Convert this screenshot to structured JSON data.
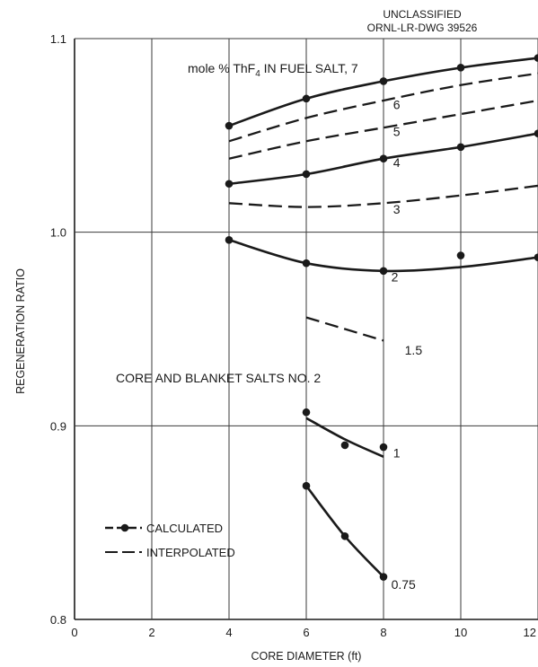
{
  "header": {
    "line1": "UNCLASSIFIED",
    "line2": "ORNL-LR-DWG 39526"
  },
  "colors": {
    "ink": "#1a1a1a",
    "grid": "#3a3a3a",
    "background": "#ffffff"
  },
  "chart_data": {
    "type": "line",
    "title": "",
    "xlabel": "CORE DIAMETER (ft)",
    "ylabel": "REGENERATION RATIO",
    "xlim": [
      0,
      12
    ],
    "ylim": [
      0.8,
      1.1
    ],
    "xticks": [
      "0",
      "2",
      "4",
      "6",
      "8",
      "10",
      "12"
    ],
    "yticks": [
      "0.8",
      "0.9",
      "1.0",
      "1.1"
    ],
    "grid": true,
    "annotations": {
      "family_title": "mole % ThF",
      "family_title_sub": "4",
      "family_title_tail": " IN FUEL SALT, 7",
      "note": "CORE AND BLANKET SALTS NO. 2"
    },
    "legend": {
      "placement": "lower-left",
      "calculated": "CALCULATED",
      "interpolated": "INTERPOLATED"
    },
    "series": [
      {
        "name": "7",
        "style": "solid",
        "x": [
          4,
          6,
          8,
          10,
          12
        ],
        "y": [
          1.055,
          1.069,
          1.078,
          1.085,
          1.09
        ],
        "points": [
          [
            4,
            1.055
          ],
          [
            6,
            1.069
          ],
          [
            8,
            1.078
          ],
          [
            10,
            1.085
          ],
          [
            12,
            1.09
          ]
        ]
      },
      {
        "name": "6",
        "style": "dashed",
        "x": [
          4,
          6,
          8,
          10,
          12
        ],
        "y": [
          1.047,
          1.059,
          1.068,
          1.076,
          1.082
        ],
        "points": []
      },
      {
        "name": "5",
        "style": "dashed",
        "x": [
          4,
          6,
          8,
          10,
          12
        ],
        "y": [
          1.038,
          1.047,
          1.054,
          1.061,
          1.068
        ],
        "points": []
      },
      {
        "name": "4",
        "style": "solid",
        "x": [
          4,
          6,
          8,
          10,
          12
        ],
        "y": [
          1.025,
          1.03,
          1.038,
          1.044,
          1.051
        ],
        "points": [
          [
            4,
            1.025
          ],
          [
            6,
            1.03
          ],
          [
            8,
            1.038
          ],
          [
            10,
            1.044
          ],
          [
            12,
            1.051
          ]
        ]
      },
      {
        "name": "3",
        "style": "dashed",
        "x": [
          4,
          6,
          8,
          10,
          12
        ],
        "y": [
          1.015,
          1.013,
          1.015,
          1.019,
          1.024
        ],
        "points": []
      },
      {
        "name": "2",
        "style": "solid",
        "x": [
          4,
          6,
          8,
          10,
          12
        ],
        "y": [
          0.996,
          0.984,
          0.98,
          0.982,
          0.987
        ],
        "points": [
          [
            4,
            0.996
          ],
          [
            6,
            0.984
          ],
          [
            8,
            0.98
          ],
          [
            10,
            0.988
          ],
          [
            12,
            0.987
          ]
        ]
      },
      {
        "name": "1.5",
        "style": "dashed",
        "x": [
          6,
          8
        ],
        "y": [
          0.956,
          0.944
        ],
        "points": []
      },
      {
        "name": "1",
        "style": "solid",
        "x": [
          6,
          7,
          8
        ],
        "y": [
          0.904,
          0.893,
          0.884
        ],
        "points": [
          [
            6,
            0.907
          ],
          [
            7,
            0.89
          ],
          [
            8,
            0.889
          ]
        ]
      },
      {
        "name": "0.75",
        "style": "solid",
        "x": [
          6,
          7,
          8
        ],
        "y": [
          0.869,
          0.843,
          0.822
        ],
        "points": [
          [
            6,
            0.869
          ],
          [
            7,
            0.843
          ],
          [
            8,
            0.822
          ]
        ]
      }
    ]
  }
}
